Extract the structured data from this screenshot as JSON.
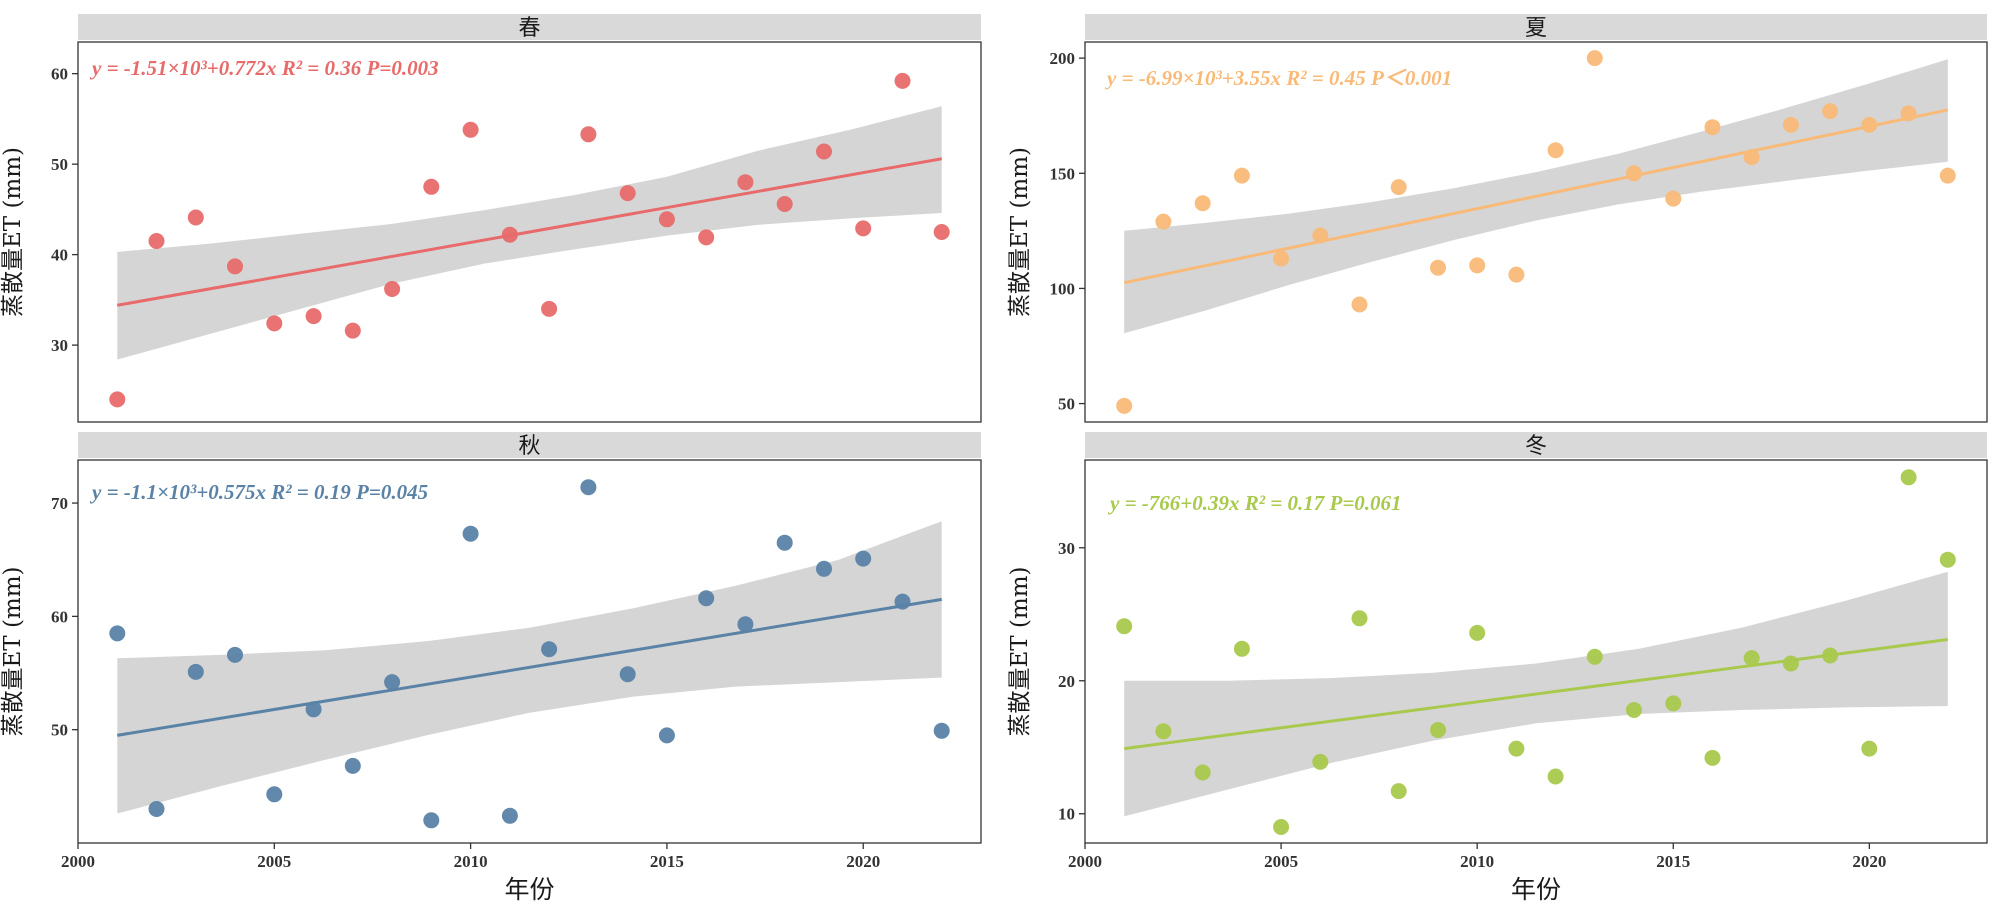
{
  "chart_data": [
    {
      "type": "scatter",
      "panel": "春",
      "color": "#E86A6A",
      "x": [
        2001,
        2002,
        2003,
        2004,
        2005,
        2006,
        2007,
        2008,
        2009,
        2010,
        2011,
        2012,
        2013,
        2014,
        2015,
        2016,
        2017,
        2018,
        2019,
        2020,
        2021,
        2022
      ],
      "values": [
        24.0,
        41.5,
        44.1,
        38.7,
        32.4,
        33.2,
        31.6,
        36.2,
        47.5,
        53.8,
        42.2,
        34.0,
        53.3,
        46.8,
        43.9,
        41.9,
        48.0,
        45.6,
        51.4,
        42.9,
        59.2,
        42.5
      ],
      "fit": {
        "x": [
          2001,
          2022
        ],
        "y": [
          34.4,
          50.6
        ]
      },
      "ci_upper": [
        40.3,
        41.2,
        42.3,
        43.4,
        44.9,
        46.6,
        48.6,
        51.5,
        53.8,
        56.4
      ],
      "ci_lower": [
        28.4,
        31.2,
        34.0,
        36.8,
        39.0,
        40.6,
        42.1,
        43.3,
        44.0,
        44.6
      ],
      "equation": "y = -1.51×10³+0.772x  R² = 0.36  P=0.003",
      "ylim": [
        21.5,
        63.5
      ],
      "yticks": [
        30,
        40,
        50,
        60
      ],
      "ylabel": "蒸散量ET (mm)"
    },
    {
      "type": "scatter",
      "panel": "夏",
      "color": "#F9BA78",
      "x": [
        2001,
        2002,
        2003,
        2004,
        2005,
        2006,
        2007,
        2008,
        2009,
        2010,
        2011,
        2012,
        2013,
        2014,
        2015,
        2016,
        2017,
        2018,
        2019,
        2020,
        2021,
        2022
      ],
      "values": [
        49,
        129,
        137,
        149,
        113,
        123,
        93,
        144,
        109,
        110,
        106,
        160,
        200,
        150,
        139,
        170,
        157,
        171,
        177,
        171,
        176,
        149
      ],
      "fit": {
        "x": [
          2001,
          2022
        ],
        "y": [
          102.5,
          177.5
        ]
      },
      "ci_upper": [
        125.0,
        128.5,
        132.5,
        137.5,
        143.5,
        150.5,
        158.5,
        168.0,
        178.0,
        188.5,
        199.5
      ],
      "ci_lower": [
        80.5,
        90.5,
        101.5,
        111.5,
        121.0,
        129.5,
        136.5,
        142.0,
        146.5,
        151.0,
        155.0
      ],
      "equation": "y = -6.99×10³+3.55x  R² = 0.45  P＜0.001",
      "ylim": [
        42,
        207
      ],
      "yticks": [
        50,
        100,
        150,
        200
      ],
      "ylabel": "蒸散量ET (mm)"
    },
    {
      "type": "scatter",
      "panel": "秋",
      "color": "#5A82A6",
      "x": [
        2001,
        2002,
        2003,
        2004,
        2005,
        2006,
        2007,
        2008,
        2009,
        2010,
        2011,
        2012,
        2013,
        2014,
        2015,
        2016,
        2017,
        2018,
        2019,
        2020,
        2021,
        2022
      ],
      "values": [
        58.5,
        43.0,
        55.1,
        56.6,
        44.3,
        51.8,
        46.8,
        54.2,
        42.0,
        67.3,
        42.4,
        57.1,
        71.4,
        54.9,
        49.5,
        61.6,
        59.3,
        66.5,
        64.2,
        65.1,
        61.3,
        49.9
      ],
      "fit": {
        "x": [
          2001,
          2022
        ],
        "y": [
          49.5,
          61.5
        ]
      },
      "ci_upper": [
        56.3,
        56.6,
        57.0,
        57.8,
        59.0,
        60.7,
        62.7,
        65.0,
        68.4
      ],
      "ci_lower": [
        42.6,
        45.0,
        47.3,
        49.5,
        51.5,
        52.9,
        53.8,
        54.2,
        54.6
      ],
      "equation": "y = -1.1×10³+0.575x  R² = 0.19  P=0.045",
      "ylim": [
        40,
        73.8
      ],
      "yticks": [
        50,
        60,
        70
      ],
      "ylabel": "蒸散量ET (mm)"
    },
    {
      "type": "scatter",
      "panel": "冬",
      "color": "#A9C94D",
      "x": [
        2001,
        2002,
        2003,
        2004,
        2005,
        2006,
        2007,
        2008,
        2009,
        2010,
        2011,
        2012,
        2013,
        2014,
        2015,
        2016,
        2017,
        2018,
        2019,
        2020,
        2021,
        2022
      ],
      "values": [
        24.1,
        16.2,
        13.1,
        22.4,
        9.0,
        13.9,
        24.7,
        11.7,
        16.3,
        23.6,
        14.9,
        12.8,
        21.8,
        17.8,
        18.3,
        14.2,
        21.7,
        21.3,
        21.9,
        14.9,
        35.3,
        29.1
      ],
      "fit": {
        "x": [
          2001,
          2022
        ],
        "y": [
          14.9,
          23.1
        ]
      },
      "ci_upper": [
        20.0,
        20.0,
        20.2,
        20.6,
        21.3,
        22.4,
        24.0,
        26.0,
        28.2
      ],
      "ci_lower": [
        9.8,
        11.8,
        13.8,
        15.5,
        16.8,
        17.5,
        17.8,
        18.0,
        18.1
      ],
      "equation": "y = -766+0.39x  R² = 0.17  P=0.061",
      "ylim": [
        7.8,
        36.6
      ],
      "yticks": [
        10,
        20,
        30
      ],
      "ylabel": "蒸散量ET (mm)"
    }
  ],
  "xaxis": {
    "label": "年份",
    "ticks": [
      2000,
      2005,
      2010,
      2015,
      2020
    ],
    "xlim": [
      2000,
      2023
    ]
  }
}
